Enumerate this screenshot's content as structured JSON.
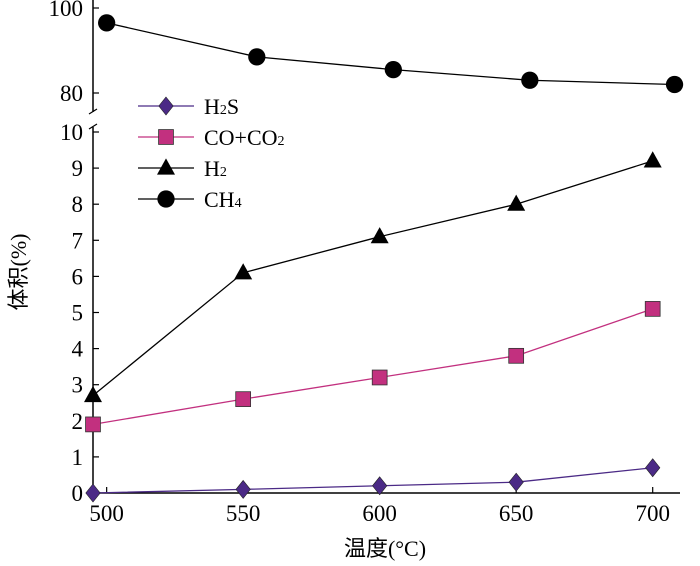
{
  "chart_data": {
    "type": "line",
    "xlabel": "温度(°C)",
    "ylabel": "体积(%)",
    "x": [
      500,
      550,
      600,
      650,
      700
    ],
    "xlim": [
      495,
      710
    ],
    "x_ticks": [
      "500",
      "550",
      "600",
      "650",
      "700"
    ],
    "y_axis_break": true,
    "ylim_lower": [
      0,
      10
    ],
    "ylim_upper": [
      80,
      100
    ],
    "y_ticks_lower": [
      "0",
      "1",
      "2",
      "3",
      "4",
      "5",
      "6",
      "7",
      "8",
      "9",
      "10"
    ],
    "y_ticks_upper": [
      "80",
      "100"
    ],
    "grid": false,
    "legend_position": "top-left",
    "series": [
      {
        "name": "H₂S",
        "legend_main": "H",
        "legend_sub": "2",
        "legend_tail": "S",
        "marker": "diamond",
        "color": "#4b2a86",
        "x": [
          495,
          550,
          600,
          650,
          700
        ],
        "values": [
          0.0,
          0.1,
          0.2,
          0.3,
          0.7
        ]
      },
      {
        "name": "CO+CO₂",
        "legend_main": "CO+CO",
        "legend_sub": "2",
        "legend_tail": "",
        "marker": "square",
        "color": "#c2307f",
        "x": [
          495,
          550,
          600,
          650,
          700
        ],
        "values": [
          1.9,
          2.6,
          3.2,
          3.8,
          5.1
        ]
      },
      {
        "name": "H₂",
        "legend_main": "H",
        "legend_sub": "2",
        "legend_tail": "",
        "marker": "triangle",
        "color": "#000000",
        "x": [
          495,
          550,
          600,
          650,
          700
        ],
        "values": [
          2.7,
          6.1,
          7.1,
          8.0,
          9.2
        ]
      },
      {
        "name": "CH₄",
        "legend_main": "CH",
        "legend_sub": "4",
        "legend_tail": "",
        "marker": "circle",
        "color": "#000000",
        "x": [
          500,
          555,
          605,
          655,
          708
        ],
        "values": [
          96.5,
          88.5,
          85.5,
          83.0,
          82.0
        ]
      }
    ]
  }
}
